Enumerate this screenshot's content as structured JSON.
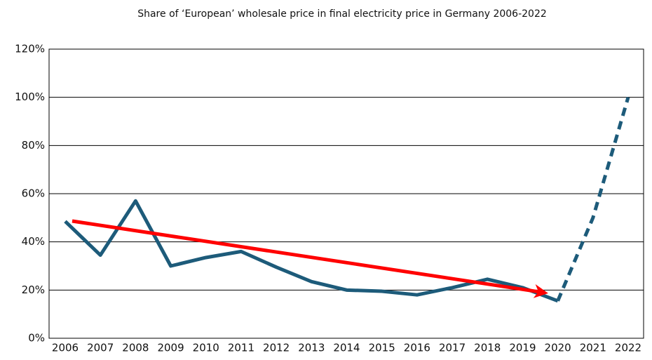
{
  "chart_data": {
    "type": "line",
    "title": "Share of ‘European’ wholesale price in final electricity price in Germany 2006-2022",
    "categories": [
      "2006",
      "2007",
      "2008",
      "2009",
      "2010",
      "2011",
      "2012",
      "2013",
      "2014",
      "2015",
      "2016",
      "2017",
      "2018",
      "2019",
      "2020",
      "2021",
      "2022"
    ],
    "series": [
      {
        "color": "#1d5b7a",
        "values": [
          48.5,
          34.5,
          57,
          30,
          33.5,
          36,
          29.5,
          23.5,
          20,
          19.5,
          18,
          21,
          24.5,
          21,
          15.5,
          50,
          100
        ],
        "dashed_from": "2020"
      }
    ],
    "ylim": [
      0,
      120
    ],
    "yticks": [
      {
        "value": 0,
        "label": "0%"
      },
      {
        "value": 20,
        "label": "20%"
      },
      {
        "value": 40,
        "label": "40%"
      },
      {
        "value": 60,
        "label": "60%"
      },
      {
        "value": 80,
        "label": "80%"
      },
      {
        "value": 100,
        "label": "100%"
      },
      {
        "value": 120,
        "label": "120%"
      }
    ],
    "grid": true
  }
}
